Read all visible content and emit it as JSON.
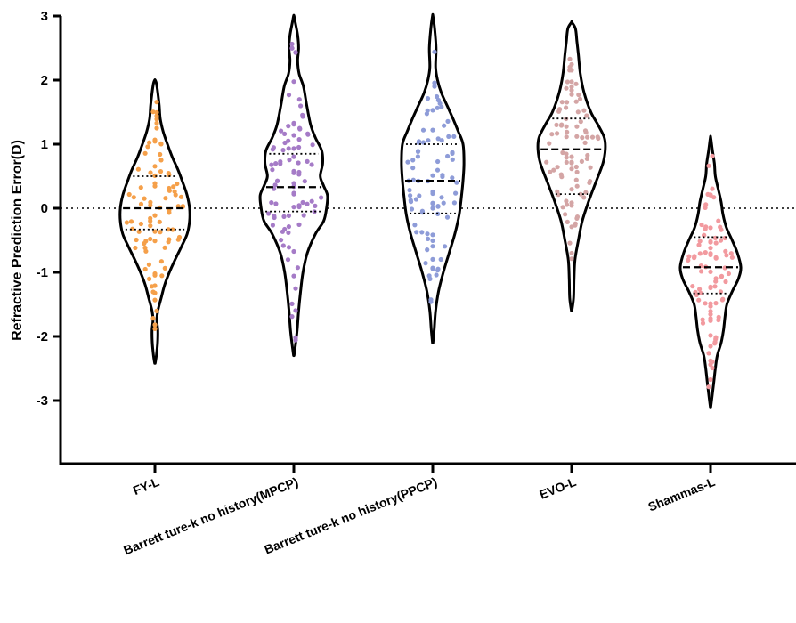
{
  "chart_data": {
    "type": "violin",
    "ylabel": "Refractive Prediction Error(D)",
    "ylim": [
      -4,
      3
    ],
    "yticks": [
      -3,
      -2,
      -1,
      0,
      1,
      2,
      3
    ],
    "reference_line": 0,
    "categories": [
      "FY-L",
      "Barrett ture-k no history(MPCP)",
      "Barrett ture-k no history(PPCP)",
      "EVO-L",
      "Shammas-L"
    ],
    "series": [
      {
        "color": "#F5A04A",
        "min": -2.4,
        "max": 2.0,
        "median": 0.0,
        "q1": -0.33,
        "q3": 0.5,
        "density": [
          [
            -2.42,
            0.005
          ],
          [
            -2.3,
            0.03
          ],
          [
            -2.1,
            0.055
          ],
          [
            -1.9,
            0.06
          ],
          [
            -1.75,
            0.04
          ],
          [
            -1.6,
            0.06
          ],
          [
            -1.4,
            0.13
          ],
          [
            -1.2,
            0.2
          ],
          [
            -1.0,
            0.3
          ],
          [
            -0.8,
            0.42
          ],
          [
            -0.6,
            0.55
          ],
          [
            -0.4,
            0.67
          ],
          [
            -0.2,
            0.72
          ],
          [
            0.0,
            0.72
          ],
          [
            0.2,
            0.67
          ],
          [
            0.4,
            0.58
          ],
          [
            0.6,
            0.48
          ],
          [
            0.8,
            0.36
          ],
          [
            1.0,
            0.26
          ],
          [
            1.2,
            0.17
          ],
          [
            1.4,
            0.11
          ],
          [
            1.6,
            0.09
          ],
          [
            1.8,
            0.06
          ],
          [
            1.95,
            0.03
          ],
          [
            2.0,
            0.005
          ]
        ]
      },
      {
        "color": "#A57BC7",
        "min": -2.3,
        "max": 3.0,
        "median": 0.33,
        "q1": -0.05,
        "q3": 0.85,
        "density": [
          [
            -2.3,
            0.005
          ],
          [
            -2.1,
            0.04
          ],
          [
            -1.9,
            0.07
          ],
          [
            -1.6,
            0.1
          ],
          [
            -1.3,
            0.14
          ],
          [
            -1.0,
            0.19
          ],
          [
            -0.7,
            0.28
          ],
          [
            -0.4,
            0.45
          ],
          [
            -0.2,
            0.62
          ],
          [
            0.0,
            0.68
          ],
          [
            0.2,
            0.7
          ],
          [
            0.35,
            0.62
          ],
          [
            0.5,
            0.55
          ],
          [
            0.7,
            0.6
          ],
          [
            0.9,
            0.58
          ],
          [
            1.1,
            0.45
          ],
          [
            1.3,
            0.35
          ],
          [
            1.6,
            0.27
          ],
          [
            1.9,
            0.2
          ],
          [
            2.1,
            0.11
          ],
          [
            2.3,
            0.08
          ],
          [
            2.5,
            0.1
          ],
          [
            2.7,
            0.08
          ],
          [
            2.9,
            0.03
          ],
          [
            3.0,
            0.005
          ]
        ]
      },
      {
        "color": "#8E9CD8",
        "min": -2.1,
        "max": 3.0,
        "median": 0.43,
        "q1": -0.08,
        "q3": 1.0,
        "density": [
          [
            -2.1,
            0.005
          ],
          [
            -1.9,
            0.03
          ],
          [
            -1.6,
            0.06
          ],
          [
            -1.3,
            0.12
          ],
          [
            -1.0,
            0.22
          ],
          [
            -0.7,
            0.34
          ],
          [
            -0.4,
            0.46
          ],
          [
            -0.1,
            0.55
          ],
          [
            0.2,
            0.6
          ],
          [
            0.43,
            0.63
          ],
          [
            0.7,
            0.65
          ],
          [
            1.0,
            0.63
          ],
          [
            1.2,
            0.53
          ],
          [
            1.4,
            0.42
          ],
          [
            1.6,
            0.3
          ],
          [
            1.8,
            0.18
          ],
          [
            2.0,
            0.1
          ],
          [
            2.2,
            0.06
          ],
          [
            2.5,
            0.07
          ],
          [
            2.8,
            0.04
          ],
          [
            3.0,
            0.005
          ]
        ]
      },
      {
        "color": "#D4A5A5",
        "min": -1.6,
        "max": 2.9,
        "median": 0.92,
        "q1": 0.22,
        "q3": 1.4,
        "density": [
          [
            -1.6,
            0.005
          ],
          [
            -1.4,
            0.04
          ],
          [
            -1.1,
            0.05
          ],
          [
            -0.8,
            0.07
          ],
          [
            -0.5,
            0.14
          ],
          [
            -0.2,
            0.22
          ],
          [
            0.1,
            0.35
          ],
          [
            0.4,
            0.5
          ],
          [
            0.7,
            0.65
          ],
          [
            0.92,
            0.7
          ],
          [
            1.1,
            0.68
          ],
          [
            1.3,
            0.55
          ],
          [
            1.5,
            0.4
          ],
          [
            1.8,
            0.26
          ],
          [
            2.1,
            0.18
          ],
          [
            2.4,
            0.14
          ],
          [
            2.6,
            0.11
          ],
          [
            2.8,
            0.08
          ],
          [
            2.9,
            0.005
          ]
        ]
      },
      {
        "color": "#F29A9F",
        "min": -3.1,
        "max": 1.1,
        "median": -0.92,
        "q1": -1.33,
        "q3": -0.45,
        "density": [
          [
            -3.1,
            0.005
          ],
          [
            -2.95,
            0.03
          ],
          [
            -2.7,
            0.07
          ],
          [
            -2.5,
            0.1
          ],
          [
            -2.3,
            0.14
          ],
          [
            -2.1,
            0.22
          ],
          [
            -1.9,
            0.27
          ],
          [
            -1.7,
            0.3
          ],
          [
            -1.5,
            0.34
          ],
          [
            -1.3,
            0.45
          ],
          [
            -1.1,
            0.58
          ],
          [
            -0.92,
            0.63
          ],
          [
            -0.7,
            0.56
          ],
          [
            -0.5,
            0.45
          ],
          [
            -0.3,
            0.33
          ],
          [
            -0.1,
            0.26
          ],
          [
            0.1,
            0.22
          ],
          [
            0.3,
            0.16
          ],
          [
            0.5,
            0.1
          ],
          [
            0.7,
            0.08
          ],
          [
            0.9,
            0.04
          ],
          [
            1.1,
            0.005
          ]
        ]
      }
    ]
  }
}
